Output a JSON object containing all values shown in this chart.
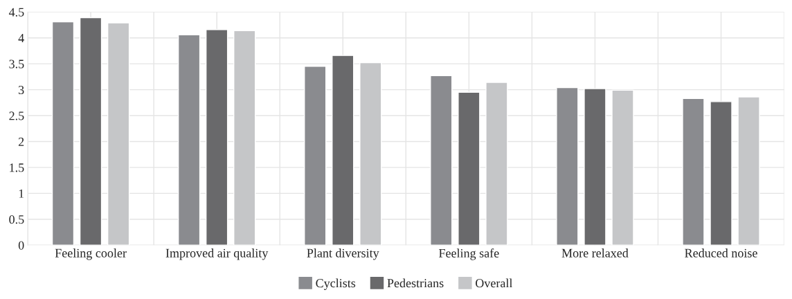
{
  "chart_data": {
    "type": "bar",
    "categories": [
      "Feeling cooler",
      "Improved air quality",
      "Plant diversity",
      "Feeling safe",
      "More relaxed",
      "Reduced noise"
    ],
    "series": [
      {
        "name": "Cyclists",
        "color": "#8a8b8f",
        "values": [
          4.31,
          4.06,
          3.45,
          3.27,
          3.04,
          2.83
        ]
      },
      {
        "name": "Pedestrians",
        "color": "#69696b",
        "values": [
          4.39,
          4.16,
          3.66,
          2.95,
          3.02,
          2.77
        ]
      },
      {
        "name": "Overall",
        "color": "#c5c6c8",
        "values": [
          4.29,
          4.14,
          3.52,
          3.14,
          2.99,
          2.86
        ]
      }
    ],
    "ylim": [
      0,
      4.5
    ],
    "yticks": [
      0,
      {
        "value": 0.5,
        "label": "0.5"
      },
      1,
      {
        "value": 1.5,
        "label": "1.5"
      },
      2,
      {
        "value": 2.5,
        "label": "2.5"
      },
      3,
      {
        "value": 3.5,
        "label": "3.5"
      },
      4,
      {
        "value": 4.5,
        "label": "4.5"
      }
    ],
    "grid": true,
    "legend": "bottom"
  }
}
